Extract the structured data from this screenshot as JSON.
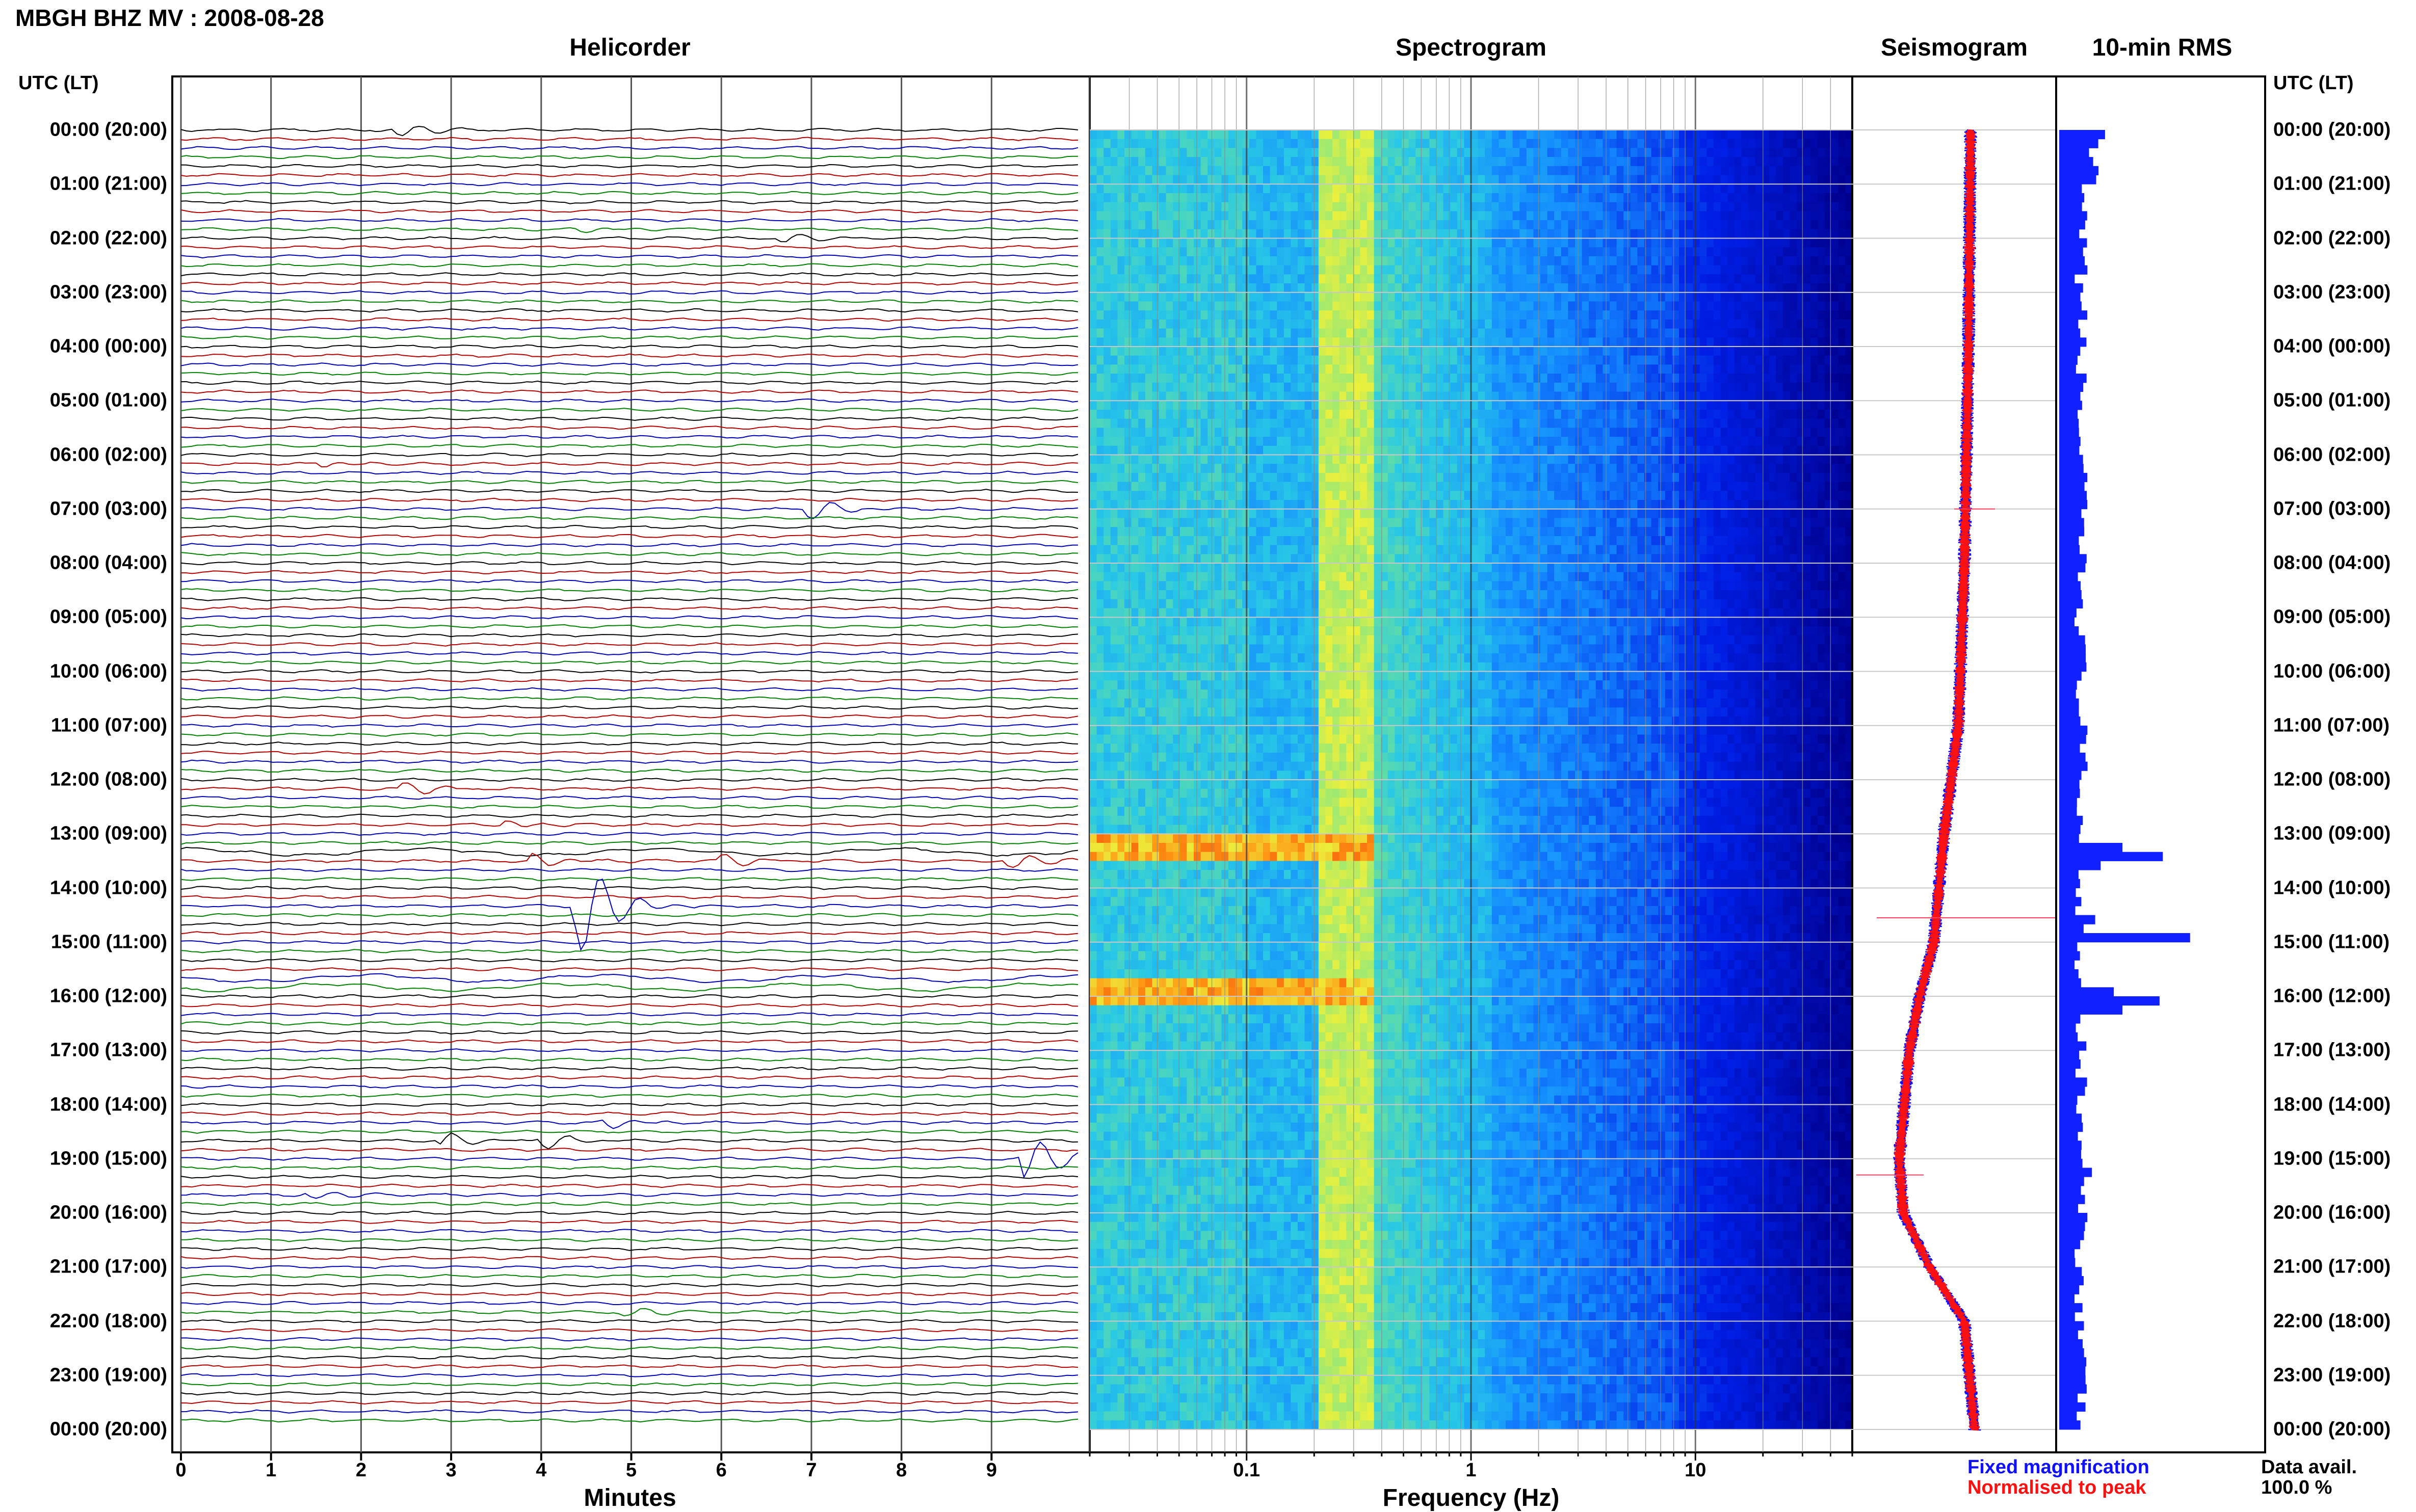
{
  "header": {
    "title": "MBGH BHZ MV : 2008-08-28"
  },
  "panels": {
    "helicorder": "Helicorder",
    "spectrogram": "Spectrogram",
    "seismogram": "Seismogram",
    "rms": "10-min RMS"
  },
  "axes": {
    "utc_header": "UTC (LT)",
    "minutes_label": "Minutes",
    "frequency_label": "Frequency (Hz)"
  },
  "time_labels": [
    "00:00 (20:00)",
    "01:00 (21:00)",
    "02:00 (22:00)",
    "03:00 (23:00)",
    "04:00 (00:00)",
    "05:00 (01:00)",
    "06:00 (02:00)",
    "07:00 (03:00)",
    "08:00 (04:00)",
    "09:00 (05:00)",
    "10:00 (06:00)",
    "11:00 (07:00)",
    "12:00 (08:00)",
    "13:00 (09:00)",
    "14:00 (10:00)",
    "15:00 (11:00)",
    "16:00 (12:00)",
    "17:00 (13:00)",
    "18:00 (14:00)",
    "19:00 (15:00)",
    "20:00 (16:00)",
    "21:00 (17:00)",
    "22:00 (18:00)",
    "23:00 (19:00)",
    "00:00 (20:00)"
  ],
  "legend": {
    "fixed": "Fixed magnification",
    "normalised": "Normalised to peak",
    "fixed_color": "#1010ff",
    "normalised_color": "#ff1010"
  },
  "data_availability": {
    "label": "Data avail.",
    "value": "100.0 %"
  },
  "chart_data": {
    "type": "heatmap",
    "station": "MBGH BHZ MV",
    "date": "2008-08-28",
    "helicorder": {
      "x_ticks": [
        "0",
        "1",
        "2",
        "3",
        "4",
        "5",
        "6",
        "7",
        "8",
        "9"
      ],
      "xlim": [
        0,
        10
      ],
      "trace_minutes_per_line": 10,
      "trace_colors": [
        "#000000",
        "#b00000",
        "#0000b0",
        "#008000"
      ],
      "events": [
        {
          "hour": 0.0,
          "minute": 2.5,
          "amp": 0.6
        },
        {
          "hour": 1.83,
          "minute": 4.5,
          "amp": 0.3
        },
        {
          "hour": 2.0,
          "minute": 6.8,
          "amp": 0.4
        },
        {
          "hour": 6.17,
          "minute": 1.7,
          "amp": 0.3
        },
        {
          "hour": 7.0,
          "minute": 7.1,
          "amp": 0.8
        },
        {
          "hour": 12.17,
          "minute": 2.6,
          "amp": 0.5
        },
        {
          "hour": 12.83,
          "minute": 3.7,
          "amp": 0.4
        },
        {
          "hour": 13.5,
          "minute": 4.0,
          "amp": 0.6
        },
        {
          "hour": 13.5,
          "minute": 6.1,
          "amp": 0.5
        },
        {
          "hour": 13.5,
          "minute": 9.3,
          "amp": 0.7
        },
        {
          "hour": 14.33,
          "minute": 4.5,
          "amp": 4.0
        },
        {
          "hour": 18.33,
          "minute": 4.8,
          "amp": 0.5
        },
        {
          "hour": 18.67,
          "minute": 3.0,
          "amp": 0.6
        },
        {
          "hour": 18.67,
          "minute": 4.1,
          "amp": 0.6
        },
        {
          "hour": 19.0,
          "minute": 9.5,
          "amp": 1.8
        },
        {
          "hour": 19.67,
          "minute": 1.5,
          "amp": 0.4
        },
        {
          "hour": 21.83,
          "minute": 5.0,
          "amp": 0.4
        }
      ]
    },
    "spectrogram": {
      "x_scale": "log",
      "x_ticks": [
        "0.1",
        "1",
        "10"
      ],
      "xlim": [
        0.02,
        50
      ],
      "ylim_hours": [
        0,
        24
      ],
      "dominant_band_hz": [
        0.2,
        0.35
      ],
      "hot_events_hours": [
        13.2,
        15.8
      ]
    },
    "seismogram": {
      "series": [
        {
          "name": "Fixed magnification",
          "color": "#1010ff"
        },
        {
          "name": "Normalised to peak",
          "color": "#ff1010"
        }
      ],
      "envelope_profile": [
        {
          "hour": 0,
          "offset": 0.58
        },
        {
          "hour": 4,
          "offset": 0.57
        },
        {
          "hour": 8,
          "offset": 0.55
        },
        {
          "hour": 11,
          "offset": 0.52
        },
        {
          "hour": 13,
          "offset": 0.45
        },
        {
          "hour": 15,
          "offset": 0.4
        },
        {
          "hour": 16,
          "offset": 0.33
        },
        {
          "hour": 17,
          "offset": 0.28
        },
        {
          "hour": 19,
          "offset": 0.23
        },
        {
          "hour": 20,
          "offset": 0.25
        },
        {
          "hour": 21,
          "offset": 0.38
        },
        {
          "hour": 22,
          "offset": 0.55
        },
        {
          "hour": 24,
          "offset": 0.6
        }
      ]
    },
    "rms": {
      "interval_minutes": 10,
      "xlim": [
        0,
        1
      ],
      "baseline": 0.2,
      "peaks": [
        {
          "hour": 0.0,
          "value": 0.42
        },
        {
          "hour": 13.17,
          "value": 0.58
        },
        {
          "hour": 13.33,
          "value": 0.95
        },
        {
          "hour": 13.5,
          "value": 0.38
        },
        {
          "hour": 14.5,
          "value": 0.33
        },
        {
          "hour": 14.83,
          "value": 1.2
        },
        {
          "hour": 15.83,
          "value": 0.5
        },
        {
          "hour": 16.0,
          "value": 0.92
        },
        {
          "hour": 16.17,
          "value": 0.58
        },
        {
          "hour": 19.17,
          "value": 0.3
        }
      ]
    }
  }
}
